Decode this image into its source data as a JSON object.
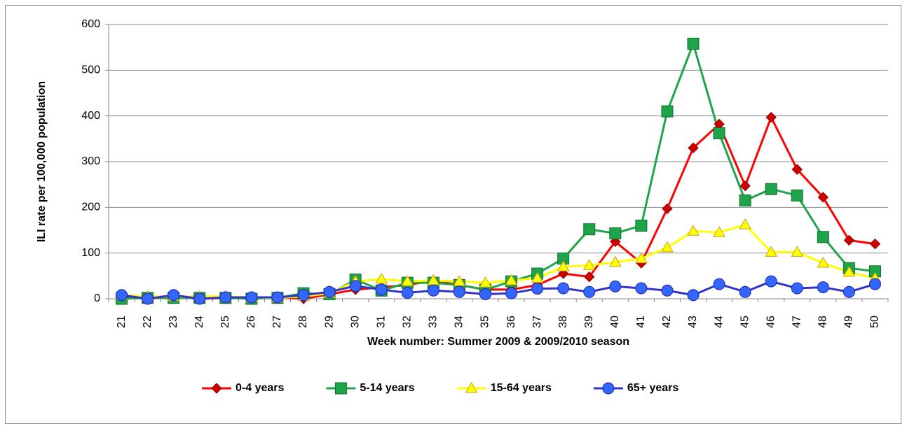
{
  "chart_data": {
    "type": "line",
    "ylabel": "ILI rate per 100,000 population",
    "xlabel": "Week number: Summer 2009 & 2009/2010 season",
    "categories": [
      "21",
      "22",
      "23",
      "24",
      "25",
      "26",
      "27",
      "28",
      "29",
      "30",
      "31",
      "32",
      "33",
      "34",
      "35",
      "36",
      "37",
      "38",
      "39",
      "40",
      "41",
      "42",
      "43",
      "44",
      "45",
      "46",
      "47",
      "48",
      "49",
      "50"
    ],
    "ylim": [
      0,
      600
    ],
    "yticks": [
      0,
      100,
      200,
      300,
      400,
      500,
      600
    ],
    "grid": true,
    "legend": "bottom",
    "series": [
      {
        "name": "0-4 years",
        "color": "#ff0000",
        "marker": "diamond",
        "marker_color": "#cc0000",
        "values": [
          5,
          0,
          5,
          0,
          2,
          2,
          3,
          0,
          10,
          20,
          25,
          30,
          40,
          30,
          20,
          20,
          30,
          55,
          48,
          125,
          78,
          197,
          330,
          382,
          247,
          397,
          283,
          222,
          128,
          120
        ]
      },
      {
        "name": "5-14 years",
        "color": "#1ea54a",
        "marker": "square",
        "marker_color": "#1ea54a",
        "values": [
          0,
          2,
          2,
          2,
          2,
          0,
          2,
          12,
          10,
          42,
          18,
          35,
          35,
          30,
          20,
          38,
          55,
          88,
          152,
          143,
          160,
          410,
          558,
          362,
          215,
          240,
          226,
          135,
          67,
          60
        ]
      },
      {
        "name": "15-64 years",
        "color": "#ffff00",
        "marker": "triangle",
        "marker_color": "#ffff00",
        "values": [
          8,
          5,
          5,
          5,
          5,
          3,
          2,
          5,
          12,
          38,
          43,
          38,
          40,
          38,
          35,
          40,
          45,
          70,
          73,
          80,
          88,
          112,
          148,
          145,
          162,
          102,
          102,
          78,
          58,
          45
        ]
      },
      {
        "name": "65+ years",
        "color": "#3333cc",
        "marker": "circle",
        "marker_color": "#3366ff",
        "values": [
          8,
          0,
          8,
          0,
          3,
          3,
          3,
          8,
          15,
          28,
          20,
          13,
          18,
          15,
          10,
          12,
          22,
          23,
          15,
          27,
          23,
          18,
          8,
          32,
          15,
          38,
          23,
          25,
          15,
          32
        ]
      }
    ]
  }
}
